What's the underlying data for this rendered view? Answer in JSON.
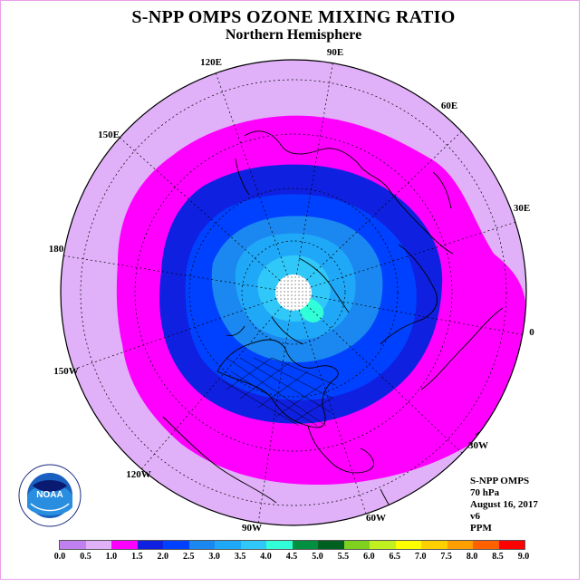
{
  "title": "S-NPP OMPS OZONE MIXING RATIO",
  "subtitle": "Northern Hemisphere",
  "longitude_labels": [
    "90E",
    "60E",
    "30E",
    "0",
    "30W",
    "60W",
    "90W",
    "120W",
    "150W",
    "180",
    "150E",
    "120E"
  ],
  "info": {
    "instrument": "S-NPP OMPS",
    "level": "70 hPa",
    "date": "August 16, 2017",
    "version": "v6",
    "units": "PPM"
  },
  "legend": {
    "ticks": [
      "0.0",
      "0.5",
      "1.0",
      "1.5",
      "2.0",
      "2.5",
      "3.0",
      "3.5",
      "4.0",
      "4.5",
      "5.0",
      "5.5",
      "6.0",
      "6.5",
      "7.0",
      "7.5",
      "8.0",
      "8.5",
      "9.0"
    ],
    "colors": [
      "#c080f0",
      "#e0b0f8",
      "#ff00ff",
      "#1020e0",
      "#0040ff",
      "#1a88f0",
      "#20a8f8",
      "#30c8f8",
      "#30ffd8",
      "#009040",
      "#006020",
      "#80d020",
      "#c0f020",
      "#ffff00",
      "#ffd000",
      "#ffa000",
      "#ff6000",
      "#ff0000",
      "#a06040"
    ]
  },
  "logo": {
    "text": "NOAA",
    "ring_text": "NATIONAL OCEANIC AND ATMOSPHERIC ADMINISTRATION · U.S. DEPARTMENT OF COMMERCE"
  },
  "map_colors": {
    "outer": "#e0b0f8",
    "band_magenta": "#ff00ff",
    "band_dark_blue": "#1020e0",
    "band_blue": "#0040ff",
    "band_mid": "#1a88f0",
    "band_light": "#20a8f8",
    "band_cyan": "#30c8f8",
    "band_aqua": "#30ffd8",
    "pole_cap": "#ffffff"
  }
}
